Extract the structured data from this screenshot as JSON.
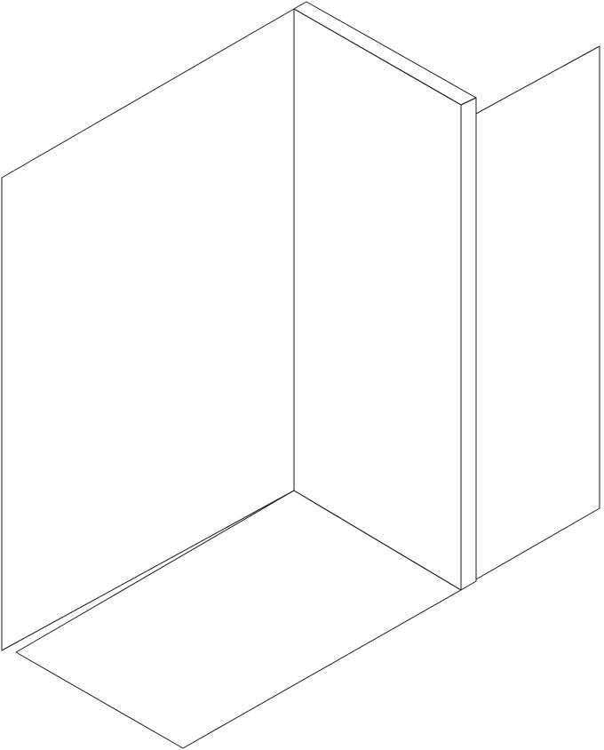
{
  "colors": {
    "background": "#ffffff",
    "wall_face": "#f3e7cd",
    "floor_face": "#f3e7cd",
    "panel_edge": "#cfb385",
    "shadow_panel": "#cdbca3",
    "outline": "#1a1a1a"
  }
}
